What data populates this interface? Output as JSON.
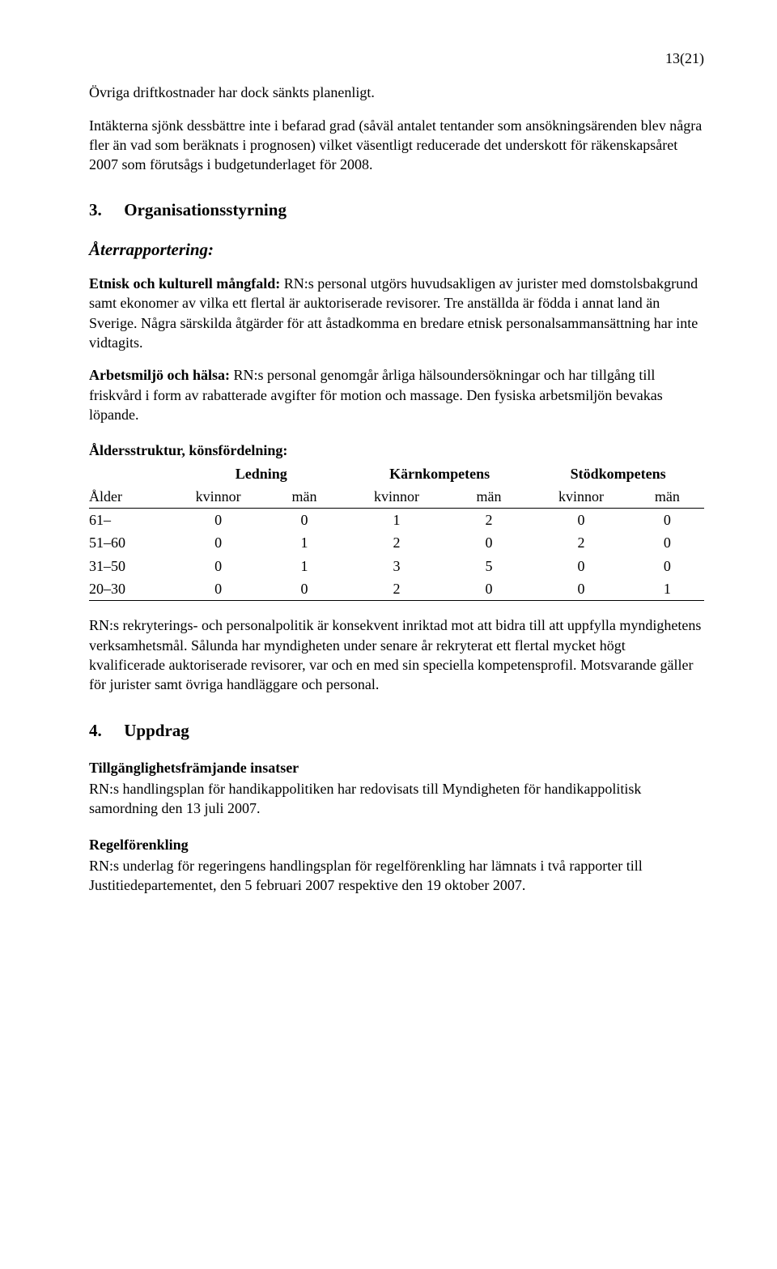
{
  "page_number": "13(21)",
  "p1": "Övriga driftkostnader har dock sänkts planenligt.",
  "p2": "Intäkterna sjönk dessbättre inte i befarad grad (såväl antalet tentander som ansökningsärenden blev några fler än vad som beräknats i prognosen) vilket väsentligt reducerade det underskott för räkenskapsåret 2007 som förutsågs i budgetunderlaget för 2008.",
  "section3": {
    "num": "3.",
    "title": "Organisationsstyrning"
  },
  "aterrapport": "Återrapportering:",
  "p3_label": "Etnisk och kulturell mångfald:",
  "p3_text": " RN:s personal utgörs huvudsakligen av jurister med domstolsbakgrund samt ekonomer av vilka ett flertal är auktoriserade revisorer. Tre anställda är födda i annat land än Sverige. Några särskilda åtgärder för att åstadkomma en bredare etnisk personalsammansättning har inte vidtagits.",
  "p4_label": "Arbetsmiljö och hälsa:",
  "p4_text": " RN:s personal genomgår årliga hälsoundersökningar och har tillgång till friskvård i form av rabatterade avgifter för motion och massage. Den fysiska arbetsmiljön bevakas löpande.",
  "table_heading": "Åldersstruktur, könsfördelning:",
  "table": {
    "group_headers": [
      "",
      "Ledning",
      "Kärnkompetens",
      "Stödkompetens"
    ],
    "sub_headers": [
      "Ålder",
      "kvinnor",
      "män",
      "kvinnor",
      "män",
      "kvinnor",
      "män"
    ],
    "rows": [
      [
        "61–",
        "0",
        "0",
        "1",
        "2",
        "0",
        "0"
      ],
      [
        "51–60",
        "0",
        "1",
        "2",
        "0",
        "2",
        "0"
      ],
      [
        "31–50",
        "0",
        "1",
        "3",
        "5",
        "0",
        "0"
      ],
      [
        "20–30",
        "0",
        "0",
        "2",
        "0",
        "0",
        "1"
      ]
    ]
  },
  "p5": "RN:s rekryterings- och personalpolitik är konsekvent inriktad mot att bidra till att uppfylla myndighetens verksamhetsmål. Sålunda har myndigheten under senare år rekryterat ett flertal mycket högt kvalificerade auktoriserade revisorer, var och en med sin speciella kompetensprofil. Motsvarande gäller för jurister samt övriga handläggare och personal.",
  "section4": {
    "num": "4.",
    "title": "Uppdrag"
  },
  "p6_heading": "Tillgänglighetsfrämjande insatser",
  "p6": "RN:s handlingsplan för handikappolitiken har redovisats till Myndigheten för handikappolitisk samordning den 13 juli 2007.",
  "p7_heading": "Regelförenkling",
  "p7": "RN:s underlag för regeringens handlingsplan för regelförenkling har lämnats i två rapporter till Justitiedepartementet, den 5 februari 2007 respektive den 19 oktober 2007."
}
